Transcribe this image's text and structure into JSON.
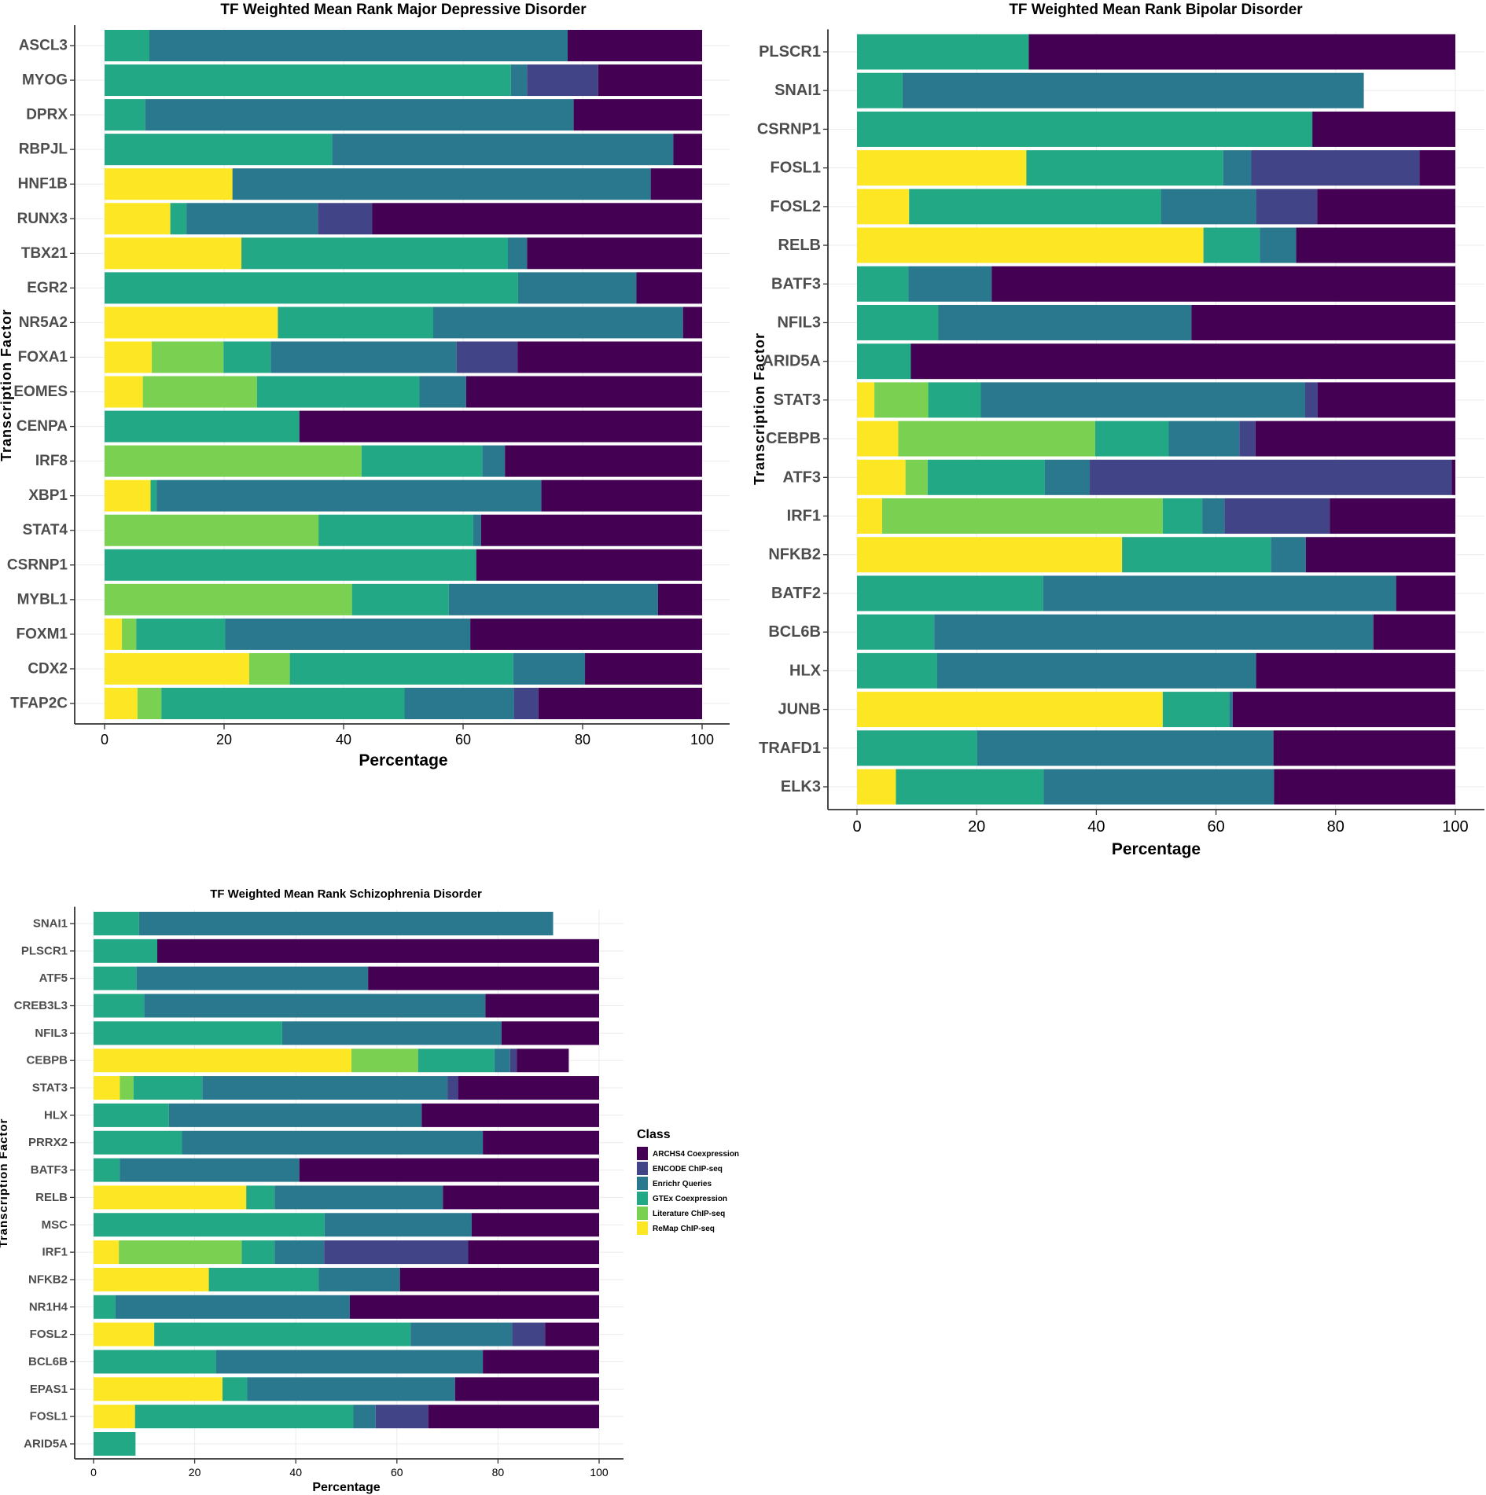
{
  "legend": {
    "title": "Class",
    "classes": [
      {
        "name": "ARCHS4 Coexpression",
        "color": "#440154"
      },
      {
        "name": "ENCODE ChIP-seq",
        "color": "#414487"
      },
      {
        "name": "Enrichr Queries",
        "color": "#2a788e"
      },
      {
        "name": "GTEx Coexpression",
        "color": "#22a884"
      },
      {
        "name": "Literature ChIP-seq",
        "color": "#7ad151"
      },
      {
        "name": "ReMap ChIP-seq",
        "color": "#fde725"
      }
    ]
  },
  "chart_data": [
    {
      "type": "bar",
      "stacked": true,
      "orientation": "horizontal",
      "title": "TF Weighted Mean Rank Major Depressive Disorder",
      "xlabel": "Percentage",
      "ylabel": "Transcription Factor",
      "xlim": [
        0,
        100
      ],
      "xticks": [
        0,
        20,
        40,
        60,
        80,
        100
      ],
      "series_order": [
        "ReMap ChIP-seq",
        "Literature ChIP-seq",
        "GTEx Coexpression",
        "Enrichr Queries",
        "ENCODE ChIP-seq",
        "ARCHS4 Coexpression"
      ],
      "categories": [
        "ASCL3",
        "MYOG",
        "DPRX",
        "RBPJL",
        "HNF1B",
        "RUNX3",
        "TBX21",
        "EGR2",
        "NR5A2",
        "FOXA1",
        "EOMES",
        "CENPA",
        "IRF8",
        "XBP1",
        "STAT4",
        "CSRNP1",
        "MYBL1",
        "FOXM1",
        "CDX2",
        "TFAP2C"
      ],
      "values": [
        [
          0,
          0,
          7.5,
          70,
          0,
          22.5
        ],
        [
          0,
          0,
          68,
          2.7,
          11.9,
          17.4
        ],
        [
          0,
          0,
          6.8,
          71.7,
          0,
          21.5
        ],
        [
          0,
          0,
          38.1,
          57.1,
          0,
          4.8
        ],
        [
          21.4,
          0,
          0,
          70,
          0,
          8.6
        ],
        [
          11,
          0,
          2.7,
          22,
          9.1,
          55.2
        ],
        [
          22.9,
          0,
          44.6,
          3.2,
          0,
          29.3
        ],
        [
          0,
          0,
          69.2,
          19.8,
          0,
          11
        ],
        [
          29,
          0,
          26,
          41.8,
          0,
          3.2
        ],
        [
          7.9,
          12,
          7.9,
          31.1,
          10.2,
          30.9
        ],
        [
          6.4,
          19.1,
          27.2,
          7.8,
          0,
          39.5
        ],
        [
          0,
          0,
          32.6,
          0,
          0,
          67.4
        ],
        [
          0,
          43,
          20.2,
          3.8,
          0,
          33
        ],
        [
          7.7,
          0,
          1,
          64.4,
          0,
          26.9
        ],
        [
          0,
          35.8,
          25.9,
          1.3,
          0,
          37
        ],
        [
          0,
          0,
          62.2,
          0,
          0,
          37.8
        ],
        [
          0,
          41.4,
          16.2,
          35,
          0,
          7.4
        ],
        [
          2.9,
          2.4,
          14.9,
          41,
          0,
          38.8
        ],
        [
          24.2,
          6.8,
          37.4,
          12,
          0,
          19.6
        ],
        [
          5.5,
          4,
          40.7,
          18.3,
          4.1,
          27.4
        ]
      ]
    },
    {
      "type": "bar",
      "stacked": true,
      "orientation": "horizontal",
      "title": "TF Weighted Mean Rank Bipolar Disorder",
      "xlabel": "Percentage",
      "ylabel": "Transcription Factor",
      "xlim": [
        0,
        100
      ],
      "xticks": [
        0,
        20,
        40,
        60,
        80,
        100
      ],
      "series_order": [
        "ReMap ChIP-seq",
        "Literature ChIP-seq",
        "GTEx Coexpression",
        "Enrichr Queries",
        "ENCODE ChIP-seq",
        "ARCHS4 Coexpression"
      ],
      "categories": [
        "PLSCR1",
        "SNAI1",
        "CSRNP1",
        "FOSL1",
        "FOSL2",
        "RELB",
        "BATF3",
        "NFIL3",
        "ARID5A",
        "STAT3",
        "CEBPB",
        "ATF3",
        "IRF1",
        "NFKB2",
        "BATF2",
        "BCL6B",
        "HLX",
        "JUNB",
        "TRAFD1",
        "ELK3"
      ],
      "values": [
        [
          0,
          0,
          28.7,
          0,
          0,
          71.3
        ],
        [
          0,
          0,
          7.6,
          77.1,
          0,
          0
        ],
        [
          0,
          0,
          76.1,
          0,
          0,
          23.9
        ],
        [
          28.3,
          0,
          32.9,
          4.7,
          28.1,
          6
        ],
        [
          8.7,
          0,
          42.1,
          15.9,
          10.2,
          23.1
        ],
        [
          57.9,
          0,
          9.4,
          6.1,
          0,
          26.6
        ],
        [
          0,
          0,
          8.6,
          13.9,
          0,
          77.5
        ],
        [
          0,
          0,
          13.6,
          42.3,
          0,
          44.1
        ],
        [
          0,
          0,
          9,
          0,
          0,
          91
        ],
        [
          2.9,
          9,
          8.8,
          54.2,
          2.1,
          23
        ],
        [
          6.9,
          32.9,
          12.3,
          11.8,
          2.7,
          33.4
        ],
        [
          8.1,
          3.7,
          19.6,
          7.5,
          60.5,
          0.6
        ],
        [
          4.2,
          46.9,
          6.6,
          3.7,
          17.6,
          21
        ],
        [
          44.3,
          0,
          24.9,
          5.8,
          0,
          25
        ],
        [
          0,
          0,
          31.1,
          59,
          0,
          9.9
        ],
        [
          0,
          0,
          12.9,
          73.4,
          0,
          13.7
        ],
        [
          0,
          0,
          13.4,
          53.3,
          0,
          33.3
        ],
        [
          51.1,
          0,
          11.1,
          0.6,
          0,
          37.2
        ],
        [
          0,
          0,
          20.1,
          49.5,
          0,
          30.4
        ],
        [
          6.5,
          0,
          24.7,
          38.5,
          0,
          30.3
        ]
      ]
    },
    {
      "type": "bar",
      "stacked": true,
      "orientation": "horizontal",
      "title": "TF Weighted Mean Rank Schizophrenia Disorder",
      "xlabel": "Percentage",
      "ylabel": "Transcription Factor",
      "xlim": [
        0,
        100
      ],
      "xticks": [
        0,
        20,
        40,
        60,
        80,
        100
      ],
      "series_order": [
        "ReMap ChIP-seq",
        "Literature ChIP-seq",
        "GTEx Coexpression",
        "Enrichr Queries",
        "ENCODE ChIP-seq",
        "ARCHS4 Coexpression"
      ],
      "categories": [
        "SNAI1",
        "PLSCR1",
        "ATF5",
        "CREB3L3",
        "NFIL3",
        "CEBPB",
        "STAT3",
        "HLX",
        "PRRX2",
        "BATF3",
        "RELB",
        "MSC",
        "IRF1",
        "NFKB2",
        "NR1H4",
        "FOSL2",
        "BCL6B",
        "EPAS1",
        "FOSL1",
        "ARID5A"
      ],
      "values": [
        [
          0,
          0,
          9,
          81.9,
          0,
          0
        ],
        [
          0,
          0,
          12.6,
          0,
          0,
          87.4
        ],
        [
          0,
          0,
          8.5,
          45.8,
          0,
          45.7
        ],
        [
          0,
          0,
          10,
          67.5,
          0,
          22.5
        ],
        [
          0,
          0,
          37.3,
          43.4,
          0,
          19.3
        ],
        [
          51,
          13.2,
          15.1,
          3.1,
          1.3,
          10.3
        ],
        [
          5.2,
          2.7,
          13.6,
          48.5,
          2.1,
          27.9
        ],
        [
          0,
          0,
          14.9,
          50,
          0,
          35.1
        ],
        [
          0,
          0,
          17.5,
          59.5,
          0,
          23
        ],
        [
          0,
          0,
          5.2,
          35.5,
          0,
          59.3
        ],
        [
          30.2,
          0,
          5.6,
          33.3,
          0,
          30.9
        ],
        [
          0,
          0,
          45.7,
          29.1,
          0,
          25.2
        ],
        [
          5,
          24.3,
          6.5,
          9.8,
          28.5,
          25.9
        ],
        [
          22.8,
          0,
          21.7,
          16.1,
          0,
          39.4
        ],
        [
          0,
          0,
          4.3,
          46.4,
          0,
          49.3
        ],
        [
          12,
          0,
          50.7,
          20.1,
          6.5,
          10.7
        ],
        [
          0,
          0,
          24.2,
          52.8,
          0,
          23
        ],
        [
          25.5,
          0,
          4.9,
          41.1,
          0,
          28.5
        ],
        [
          8.2,
          0,
          43.2,
          4.4,
          10.4,
          33.8
        ],
        [
          0,
          0,
          8.3,
          0,
          0,
          0
        ]
      ]
    }
  ]
}
